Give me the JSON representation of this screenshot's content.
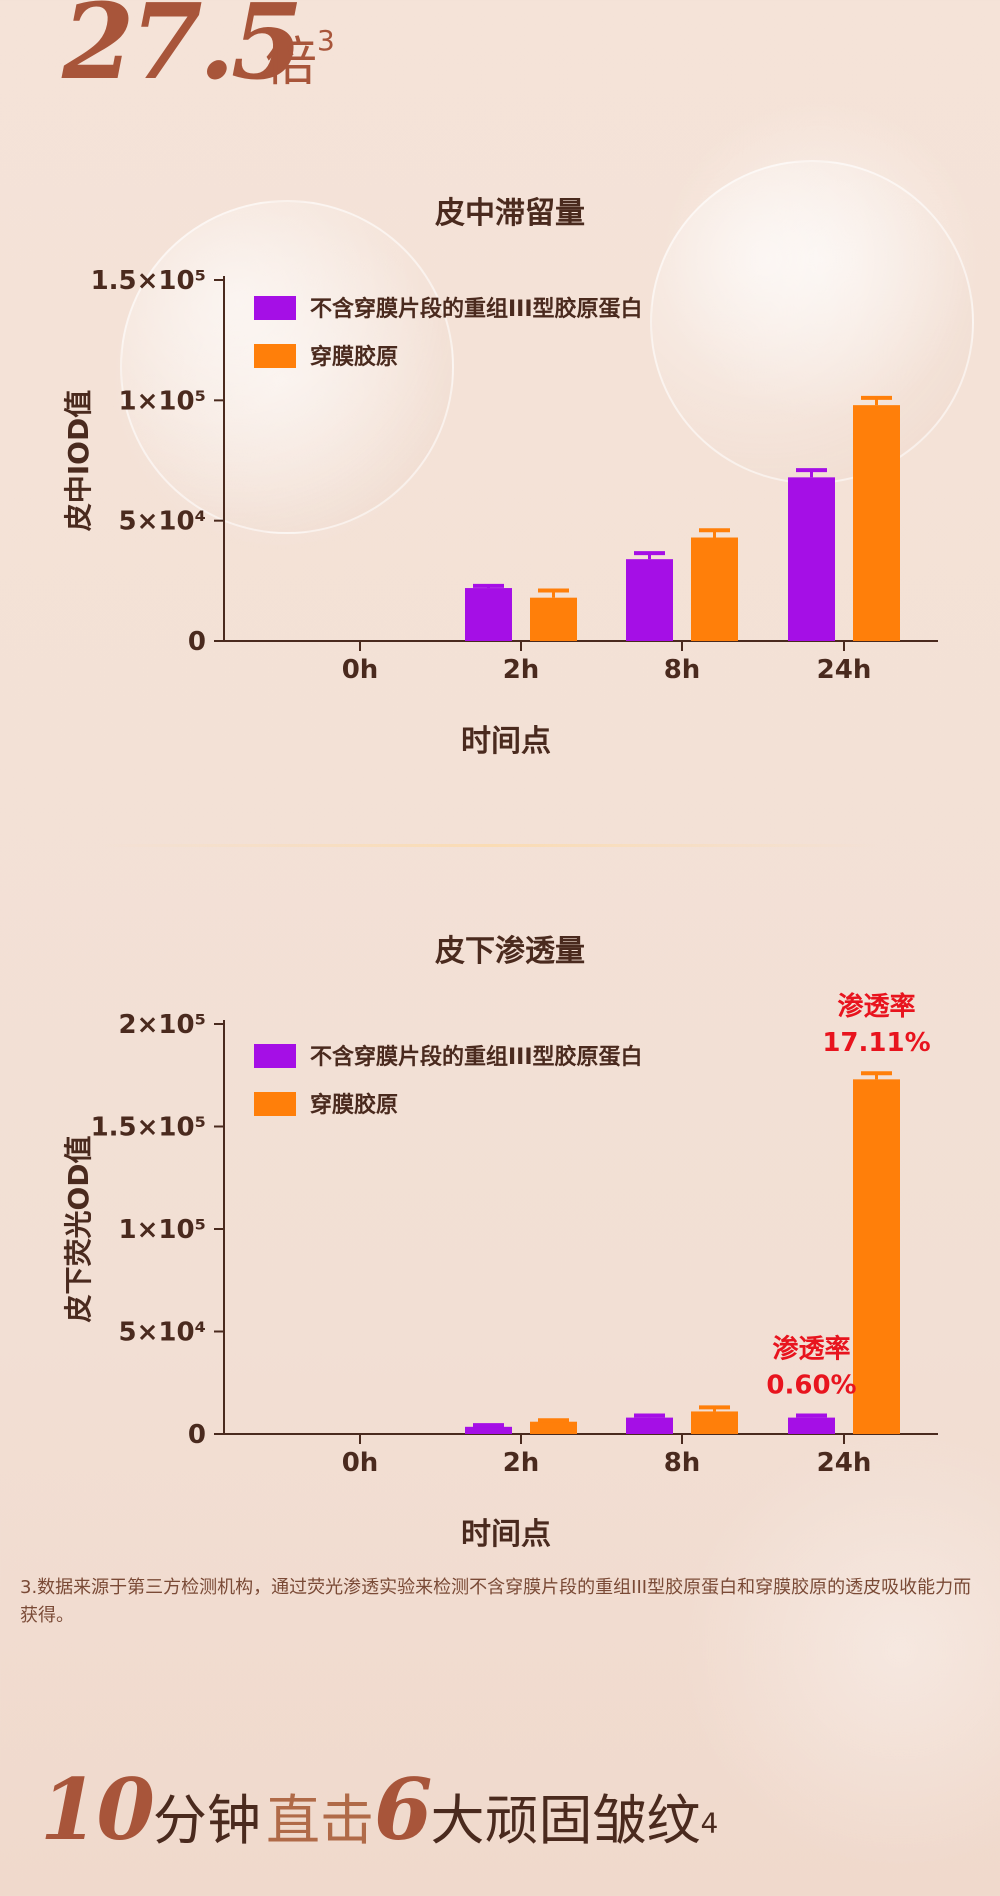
{
  "header": {
    "number": "27.5",
    "unit": "倍",
    "footnote_mark": "3"
  },
  "colors": {
    "purple": "#a50fe6",
    "orange": "#ff7f0a",
    "text": "#4a2a1e",
    "accent_red": "#e8141e"
  },
  "chart_data": [
    {
      "type": "bar",
      "title": "皮中滞留量",
      "xlabel": "时间点",
      "ylabel": "皮中IOD值",
      "categories": [
        "0h",
        "2h",
        "8h",
        "24h"
      ],
      "ylim": [
        0,
        150000
      ],
      "yticks": [
        {
          "value": 0,
          "label": "0"
        },
        {
          "value": 50000,
          "label": "5×10⁴"
        },
        {
          "value": 100000,
          "label": "1×10⁵"
        },
        {
          "value": 150000,
          "label": "1.5×10⁵"
        }
      ],
      "legend": "top-left",
      "series": [
        {
          "name": "不含穿膜片段的重组III型胶原蛋白",
          "color": "#a50fe6",
          "values": [
            0,
            22000,
            34000,
            68000
          ],
          "errors": [
            0,
            900,
            2500,
            3000
          ]
        },
        {
          "name": "穿膜胶原",
          "color": "#ff7f0a",
          "values": [
            0,
            18000,
            43000,
            98000
          ],
          "errors": [
            0,
            3000,
            3000,
            3000
          ]
        }
      ],
      "annotations": []
    },
    {
      "type": "bar",
      "title": "皮下渗透量",
      "xlabel": "时间点",
      "ylabel": "皮下荧光OD值",
      "categories": [
        "0h",
        "2h",
        "8h",
        "24h"
      ],
      "ylim": [
        0,
        200000
      ],
      "yticks": [
        {
          "value": 0,
          "label": "0"
        },
        {
          "value": 50000,
          "label": "5×10⁴"
        },
        {
          "value": 100000,
          "label": "1×10⁵"
        },
        {
          "value": 150000,
          "label": "1.5×10⁵"
        },
        {
          "value": 200000,
          "label": "2×10⁵"
        }
      ],
      "legend": "top-left",
      "series": [
        {
          "name": "不含穿膜片段的重组III型胶原蛋白",
          "color": "#a50fe6",
          "values": [
            0,
            3500,
            8000,
            8000
          ],
          "errors": [
            0,
            800,
            1000,
            1000
          ]
        },
        {
          "name": "穿膜胶原",
          "color": "#ff7f0a",
          "values": [
            0,
            6000,
            11000,
            173000
          ],
          "errors": [
            0,
            700,
            2000,
            3000
          ]
        }
      ],
      "annotations": [
        {
          "label": "渗透率",
          "value": "17.11%",
          "category": "24h",
          "series": 1
        },
        {
          "label": "渗透率",
          "value": "0.60%",
          "category": "24h",
          "series": 0
        }
      ]
    }
  ],
  "footnote": "3.数据来源于第三方检测机构，通过荧光渗透实验来检测不含穿膜片段的重组III型胶原蛋白和穿膜胶原的透皮吸收能力而获得。",
  "bottom_line": {
    "num1": "10",
    "text1": "分钟",
    "text2": "直击",
    "num2": "6",
    "text3": "大顽固皱纹",
    "footnote_mark": "4"
  }
}
